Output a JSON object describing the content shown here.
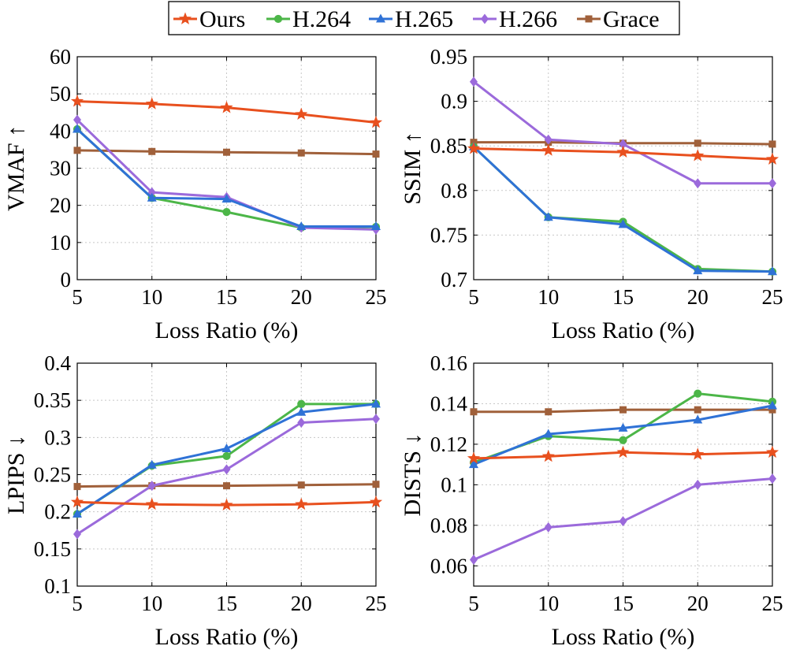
{
  "legend": {
    "entries": [
      {
        "name": "Ours",
        "color": "#E8501E",
        "marker": "star"
      },
      {
        "name": "H.264",
        "color": "#4CB648",
        "marker": "circle"
      },
      {
        "name": "H.265",
        "color": "#2F72D6",
        "marker": "triangle"
      },
      {
        "name": "H.266",
        "color": "#9B6ADB",
        "marker": "diamond"
      },
      {
        "name": "Grace",
        "color": "#A0603A",
        "marker": "square"
      }
    ]
  },
  "chart_data": [
    {
      "type": "line",
      "xlabel": "Loss Ratio (%)",
      "ylabel": "VMAF ↑",
      "x": [
        5,
        10,
        15,
        20,
        25
      ],
      "xticks": [
        "5",
        "10",
        "15",
        "20",
        "25"
      ],
      "ylim": [
        0,
        60
      ],
      "yticks": [
        0,
        10,
        20,
        30,
        40,
        50,
        60
      ],
      "ytick_labels": [
        "0",
        "10",
        "20",
        "30",
        "40",
        "50",
        "60"
      ],
      "grid": true,
      "series": [
        {
          "name": "Ours",
          "values": [
            48.0,
            47.3,
            46.3,
            44.5,
            42.3
          ]
        },
        {
          "name": "H.264",
          "values": [
            40.5,
            22.0,
            18.2,
            14.0,
            14.2
          ]
        },
        {
          "name": "H.265",
          "values": [
            40.5,
            22.0,
            21.7,
            14.3,
            14.3
          ]
        },
        {
          "name": "H.266",
          "values": [
            43.0,
            23.5,
            22.2,
            14.0,
            13.5
          ]
        },
        {
          "name": "Grace",
          "values": [
            34.8,
            34.5,
            34.3,
            34.1,
            33.8
          ]
        }
      ]
    },
    {
      "type": "line",
      "xlabel": "Loss Ratio (%)",
      "ylabel": "SSIM ↑",
      "x": [
        5,
        10,
        15,
        20,
        25
      ],
      "xticks": [
        "5",
        "10",
        "15",
        "20",
        "25"
      ],
      "ylim": [
        0.7,
        0.95
      ],
      "yticks": [
        0.7,
        0.75,
        0.8,
        0.85,
        0.9,
        0.95
      ],
      "ytick_labels": [
        "0.7",
        "0.75",
        "0.8",
        "0.85",
        "0.9",
        "0.95"
      ],
      "grid": true,
      "series": [
        {
          "name": "Ours",
          "values": [
            0.847,
            0.845,
            0.843,
            0.839,
            0.835
          ]
        },
        {
          "name": "H.264",
          "values": [
            0.849,
            0.77,
            0.765,
            0.712,
            0.709
          ]
        },
        {
          "name": "H.265",
          "values": [
            0.849,
            0.77,
            0.762,
            0.71,
            0.709
          ]
        },
        {
          "name": "H.266",
          "values": [
            0.922,
            0.857,
            0.852,
            0.808,
            0.808
          ]
        },
        {
          "name": "Grace",
          "values": [
            0.854,
            0.854,
            0.853,
            0.853,
            0.852
          ]
        }
      ]
    },
    {
      "type": "line",
      "xlabel": "Loss Ratio (%)",
      "ylabel": "LPIPS ↓",
      "x": [
        5,
        10,
        15,
        20,
        25
      ],
      "xticks": [
        "5",
        "10",
        "15",
        "20",
        "25"
      ],
      "ylim": [
        0.1,
        0.4
      ],
      "yticks": [
        0.1,
        0.15,
        0.2,
        0.25,
        0.3,
        0.35,
        0.4
      ],
      "ytick_labels": [
        "0.1",
        "0.15",
        "0.2",
        "0.25",
        "0.3",
        "0.35",
        "0.4"
      ],
      "grid": true,
      "series": [
        {
          "name": "Ours",
          "values": [
            0.213,
            0.21,
            0.209,
            0.21,
            0.213
          ]
        },
        {
          "name": "H.264",
          "values": [
            0.197,
            0.262,
            0.275,
            0.345,
            0.345
          ]
        },
        {
          "name": "H.265",
          "values": [
            0.197,
            0.263,
            0.285,
            0.334,
            0.345
          ]
        },
        {
          "name": "H.266",
          "values": [
            0.17,
            0.235,
            0.257,
            0.32,
            0.325
          ]
        },
        {
          "name": "Grace",
          "values": [
            0.234,
            0.235,
            0.235,
            0.236,
            0.237
          ]
        }
      ]
    },
    {
      "type": "line",
      "xlabel": "Loss Ratio (%)",
      "ylabel": "DISTS ↓",
      "x": [
        5,
        10,
        15,
        20,
        25
      ],
      "xticks": [
        "5",
        "10",
        "15",
        "20",
        "25"
      ],
      "ylim": [
        0.05,
        0.16
      ],
      "yticks": [
        0.06,
        0.08,
        0.1,
        0.12,
        0.14,
        0.16
      ],
      "ytick_labels": [
        "0.06",
        "0.08",
        "0.1",
        "0.12",
        "0.14",
        "0.16"
      ],
      "grid": true,
      "series": [
        {
          "name": "Ours",
          "values": [
            0.113,
            0.114,
            0.116,
            0.115,
            0.116
          ]
        },
        {
          "name": "H.264",
          "values": [
            0.111,
            0.124,
            0.122,
            0.145,
            0.141
          ]
        },
        {
          "name": "H.265",
          "values": [
            0.11,
            0.125,
            0.128,
            0.132,
            0.139
          ]
        },
        {
          "name": "H.266",
          "values": [
            0.063,
            0.079,
            0.082,
            0.1,
            0.103
          ]
        },
        {
          "name": "Grace",
          "values": [
            0.136,
            0.136,
            0.137,
            0.137,
            0.137
          ]
        }
      ]
    }
  ]
}
